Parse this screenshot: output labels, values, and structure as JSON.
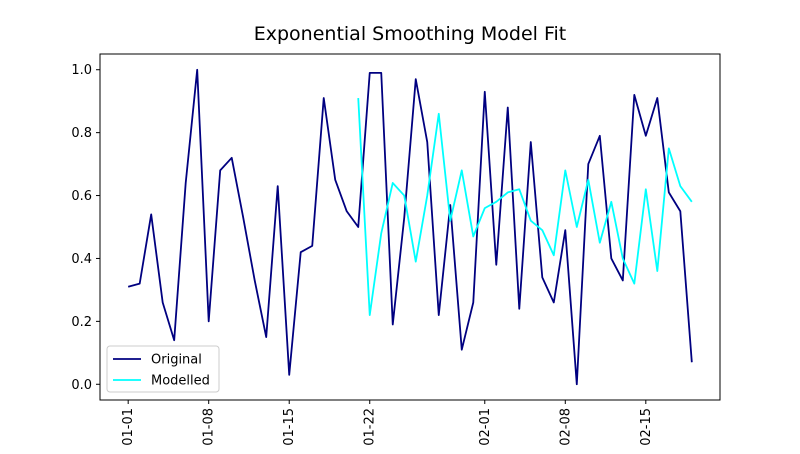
{
  "chart_data": {
    "type": "line",
    "title": "Exponential Smoothing Model Fit",
    "xlabel": "",
    "ylabel": "",
    "x": [
      "2023-01-01",
      "2023-01-02",
      "2023-01-03",
      "2023-01-04",
      "2023-01-05",
      "2023-01-06",
      "2023-01-07",
      "2023-01-08",
      "2023-01-09",
      "2023-01-10",
      "2023-01-11",
      "2023-01-12",
      "2023-01-13",
      "2023-01-14",
      "2023-01-15",
      "2023-01-16",
      "2023-01-17",
      "2023-01-18",
      "2023-01-19",
      "2023-01-20",
      "2023-01-21",
      "2023-01-22",
      "2023-01-23",
      "2023-01-24",
      "2023-01-25",
      "2023-01-26",
      "2023-01-27",
      "2023-01-28",
      "2023-01-29",
      "2023-01-30",
      "2023-01-31",
      "2023-02-01",
      "2023-02-02",
      "2023-02-03",
      "2023-02-04",
      "2023-02-05",
      "2023-02-06",
      "2023-02-07",
      "2023-02-08",
      "2023-02-09",
      "2023-02-10",
      "2023-02-11",
      "2023-02-12",
      "2023-02-13",
      "2023-02-14",
      "2023-02-15",
      "2023-02-16",
      "2023-02-17",
      "2023-02-18",
      "2023-02-19"
    ],
    "x_ticks": [
      "01-01",
      "01-08",
      "01-15",
      "01-22",
      "02-01",
      "02-08",
      "02-15"
    ],
    "y_ticks": [
      "0.0",
      "0.2",
      "0.4",
      "0.6",
      "0.8",
      "1.0"
    ],
    "ylim": [
      -0.05,
      1.05
    ],
    "legend_position": "lower-left",
    "series": [
      {
        "name": "Original",
        "color": "#000080",
        "values": [
          0.31,
          0.32,
          0.54,
          0.26,
          0.14,
          0.64,
          1.0,
          0.2,
          0.68,
          0.72,
          0.53,
          0.33,
          0.15,
          0.63,
          0.03,
          0.42,
          0.44,
          0.91,
          0.65,
          0.55,
          0.5,
          0.99,
          0.99,
          0.19,
          0.53,
          0.97,
          0.77,
          0.22,
          0.57,
          0.11,
          0.26,
          0.93,
          0.38,
          0.88,
          0.24,
          0.77,
          0.34,
          0.26,
          0.49,
          0.0,
          0.7,
          0.79,
          0.4,
          0.33,
          0.92,
          0.79,
          0.91,
          0.61,
          0.55,
          0.07
        ]
      },
      {
        "name": "Modelled",
        "color": "#00ffff",
        "values": [
          null,
          null,
          null,
          null,
          null,
          null,
          null,
          null,
          null,
          null,
          null,
          null,
          null,
          null,
          null,
          null,
          null,
          null,
          null,
          null,
          0.91,
          0.22,
          0.48,
          0.64,
          0.6,
          0.39,
          0.6,
          0.86,
          0.52,
          0.68,
          0.47,
          0.56,
          0.58,
          0.61,
          0.62,
          0.52,
          0.49,
          0.41,
          0.68,
          0.5,
          0.65,
          0.45,
          0.58,
          0.4,
          0.32,
          0.62,
          0.36,
          0.75,
          0.63,
          0.58
        ]
      }
    ]
  }
}
